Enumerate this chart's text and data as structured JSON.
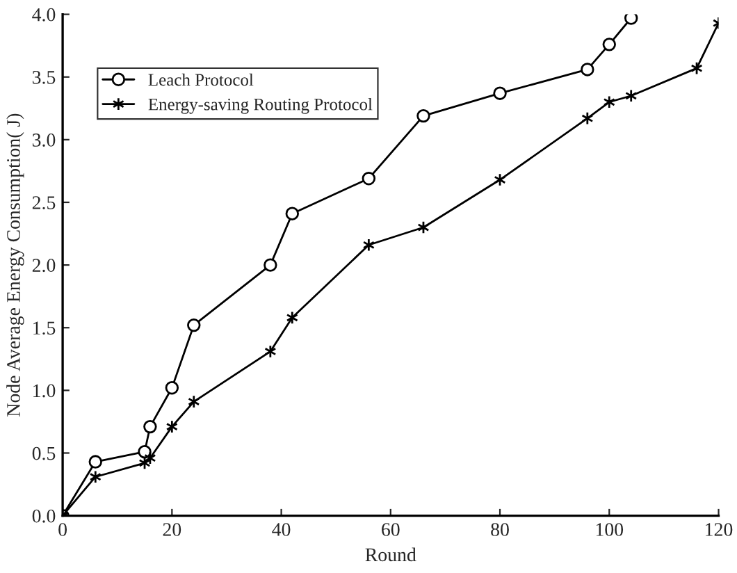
{
  "chart_data": {
    "type": "line",
    "xlabel": "Round",
    "ylabel": "Node Average Energy Consumption( J)",
    "xlim": [
      0,
      120
    ],
    "xticks": [
      0,
      20,
      40,
      60,
      80,
      100,
      120
    ],
    "ylim": [
      0,
      4
    ],
    "yticks": [
      {
        "value": 0,
        "label": "0.0"
      },
      {
        "value": 0.5,
        "label": "0.5"
      },
      {
        "value": 1,
        "label": "1.0"
      },
      {
        "value": 1.5,
        "label": "1.5"
      },
      {
        "value": 2,
        "label": "2.0"
      },
      {
        "value": 2.5,
        "label": "2.5"
      },
      {
        "value": 3,
        "label": "3.0"
      },
      {
        "value": 3.5,
        "label": "3.5"
      },
      {
        "value": 4,
        "label": "4.0"
      }
    ],
    "grid": false,
    "legend": "top left",
    "line_style": "solid",
    "series": [
      {
        "name": "Leach Protocol",
        "color": "#000000",
        "marker": "circle",
        "x": [
          0,
          6,
          15,
          16,
          20,
          24,
          38,
          42,
          56,
          66,
          80,
          96,
          100,
          104
        ],
        "values": [
          0,
          0.43,
          0.51,
          0.71,
          1.02,
          1.52,
          2.0,
          2.41,
          2.69,
          3.19,
          3.37,
          3.56,
          3.76,
          3.97
        ]
      },
      {
        "name": "Energy-saving Routing Protocol",
        "color": "#000000",
        "marker": "cross",
        "x": [
          0,
          6,
          15,
          16,
          20,
          24,
          38,
          42,
          56,
          66,
          80,
          96,
          100,
          104,
          116,
          120
        ],
        "values": [
          0,
          0.31,
          0.42,
          0.46,
          0.71,
          0.91,
          1.31,
          1.58,
          2.16,
          2.3,
          2.68,
          3.17,
          3.3,
          3.35,
          3.57,
          3.93
        ]
      }
    ]
  }
}
